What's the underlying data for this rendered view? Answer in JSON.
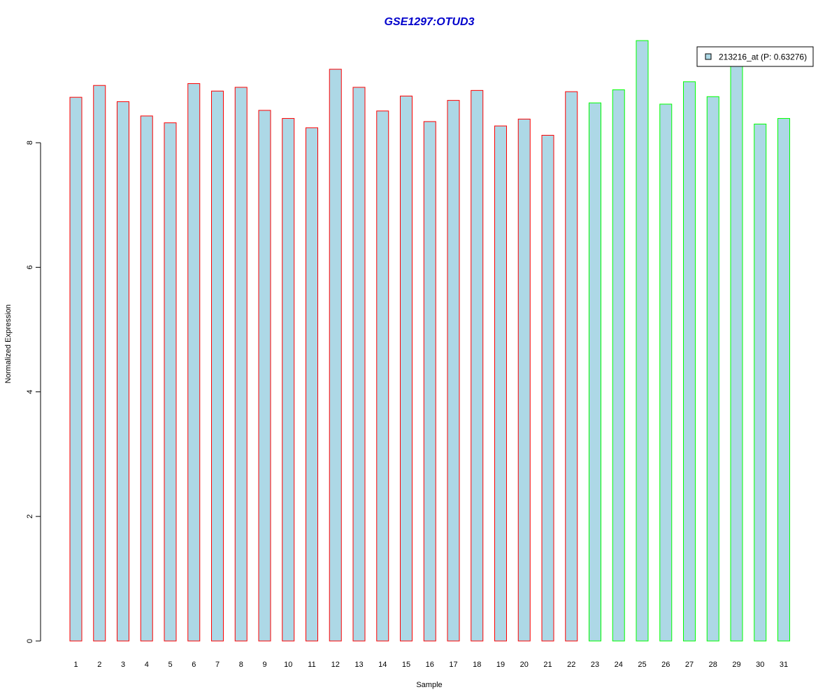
{
  "chart_data": {
    "type": "bar",
    "title": "GSE1297:OTUD3",
    "xlabel": "Sample",
    "ylabel": "Normalized Expression",
    "ylim": [
      0,
      9.6
    ],
    "yticks": [
      "0",
      "2",
      "4",
      "6",
      "8"
    ],
    "categories": [
      "1",
      "2",
      "3",
      "4",
      "5",
      "6",
      "7",
      "8",
      "9",
      "10",
      "11",
      "12",
      "13",
      "14",
      "15",
      "16",
      "17",
      "18",
      "19",
      "20",
      "21",
      "22",
      "23",
      "24",
      "25",
      "26",
      "27",
      "28",
      "29",
      "30",
      "31"
    ],
    "series": [
      {
        "name": "213216_at (P: 0.63276)",
        "values": [
          8.73,
          8.92,
          8.66,
          8.43,
          8.32,
          8.95,
          8.83,
          8.89,
          8.52,
          8.39,
          8.24,
          9.18,
          8.89,
          8.51,
          8.75,
          8.34,
          8.68,
          8.84,
          8.27,
          8.38,
          8.12,
          8.82,
          8.64,
          8.85,
          9.64,
          8.62,
          8.98,
          8.74,
          9.26,
          8.3,
          8.39
        ]
      }
    ],
    "groups": [
      1,
      1,
      1,
      1,
      1,
      1,
      1,
      1,
      1,
      1,
      1,
      1,
      1,
      1,
      1,
      1,
      1,
      1,
      1,
      1,
      1,
      1,
      2,
      2,
      2,
      2,
      2,
      2,
      2,
      2,
      2
    ],
    "colors": {
      "fill": "#add8e6",
      "group1_border": "#ff0000",
      "group2_border": "#00ff00",
      "title": "#0000cc",
      "axis": "#000000"
    },
    "legend_placement": "top-right",
    "grid": false
  }
}
